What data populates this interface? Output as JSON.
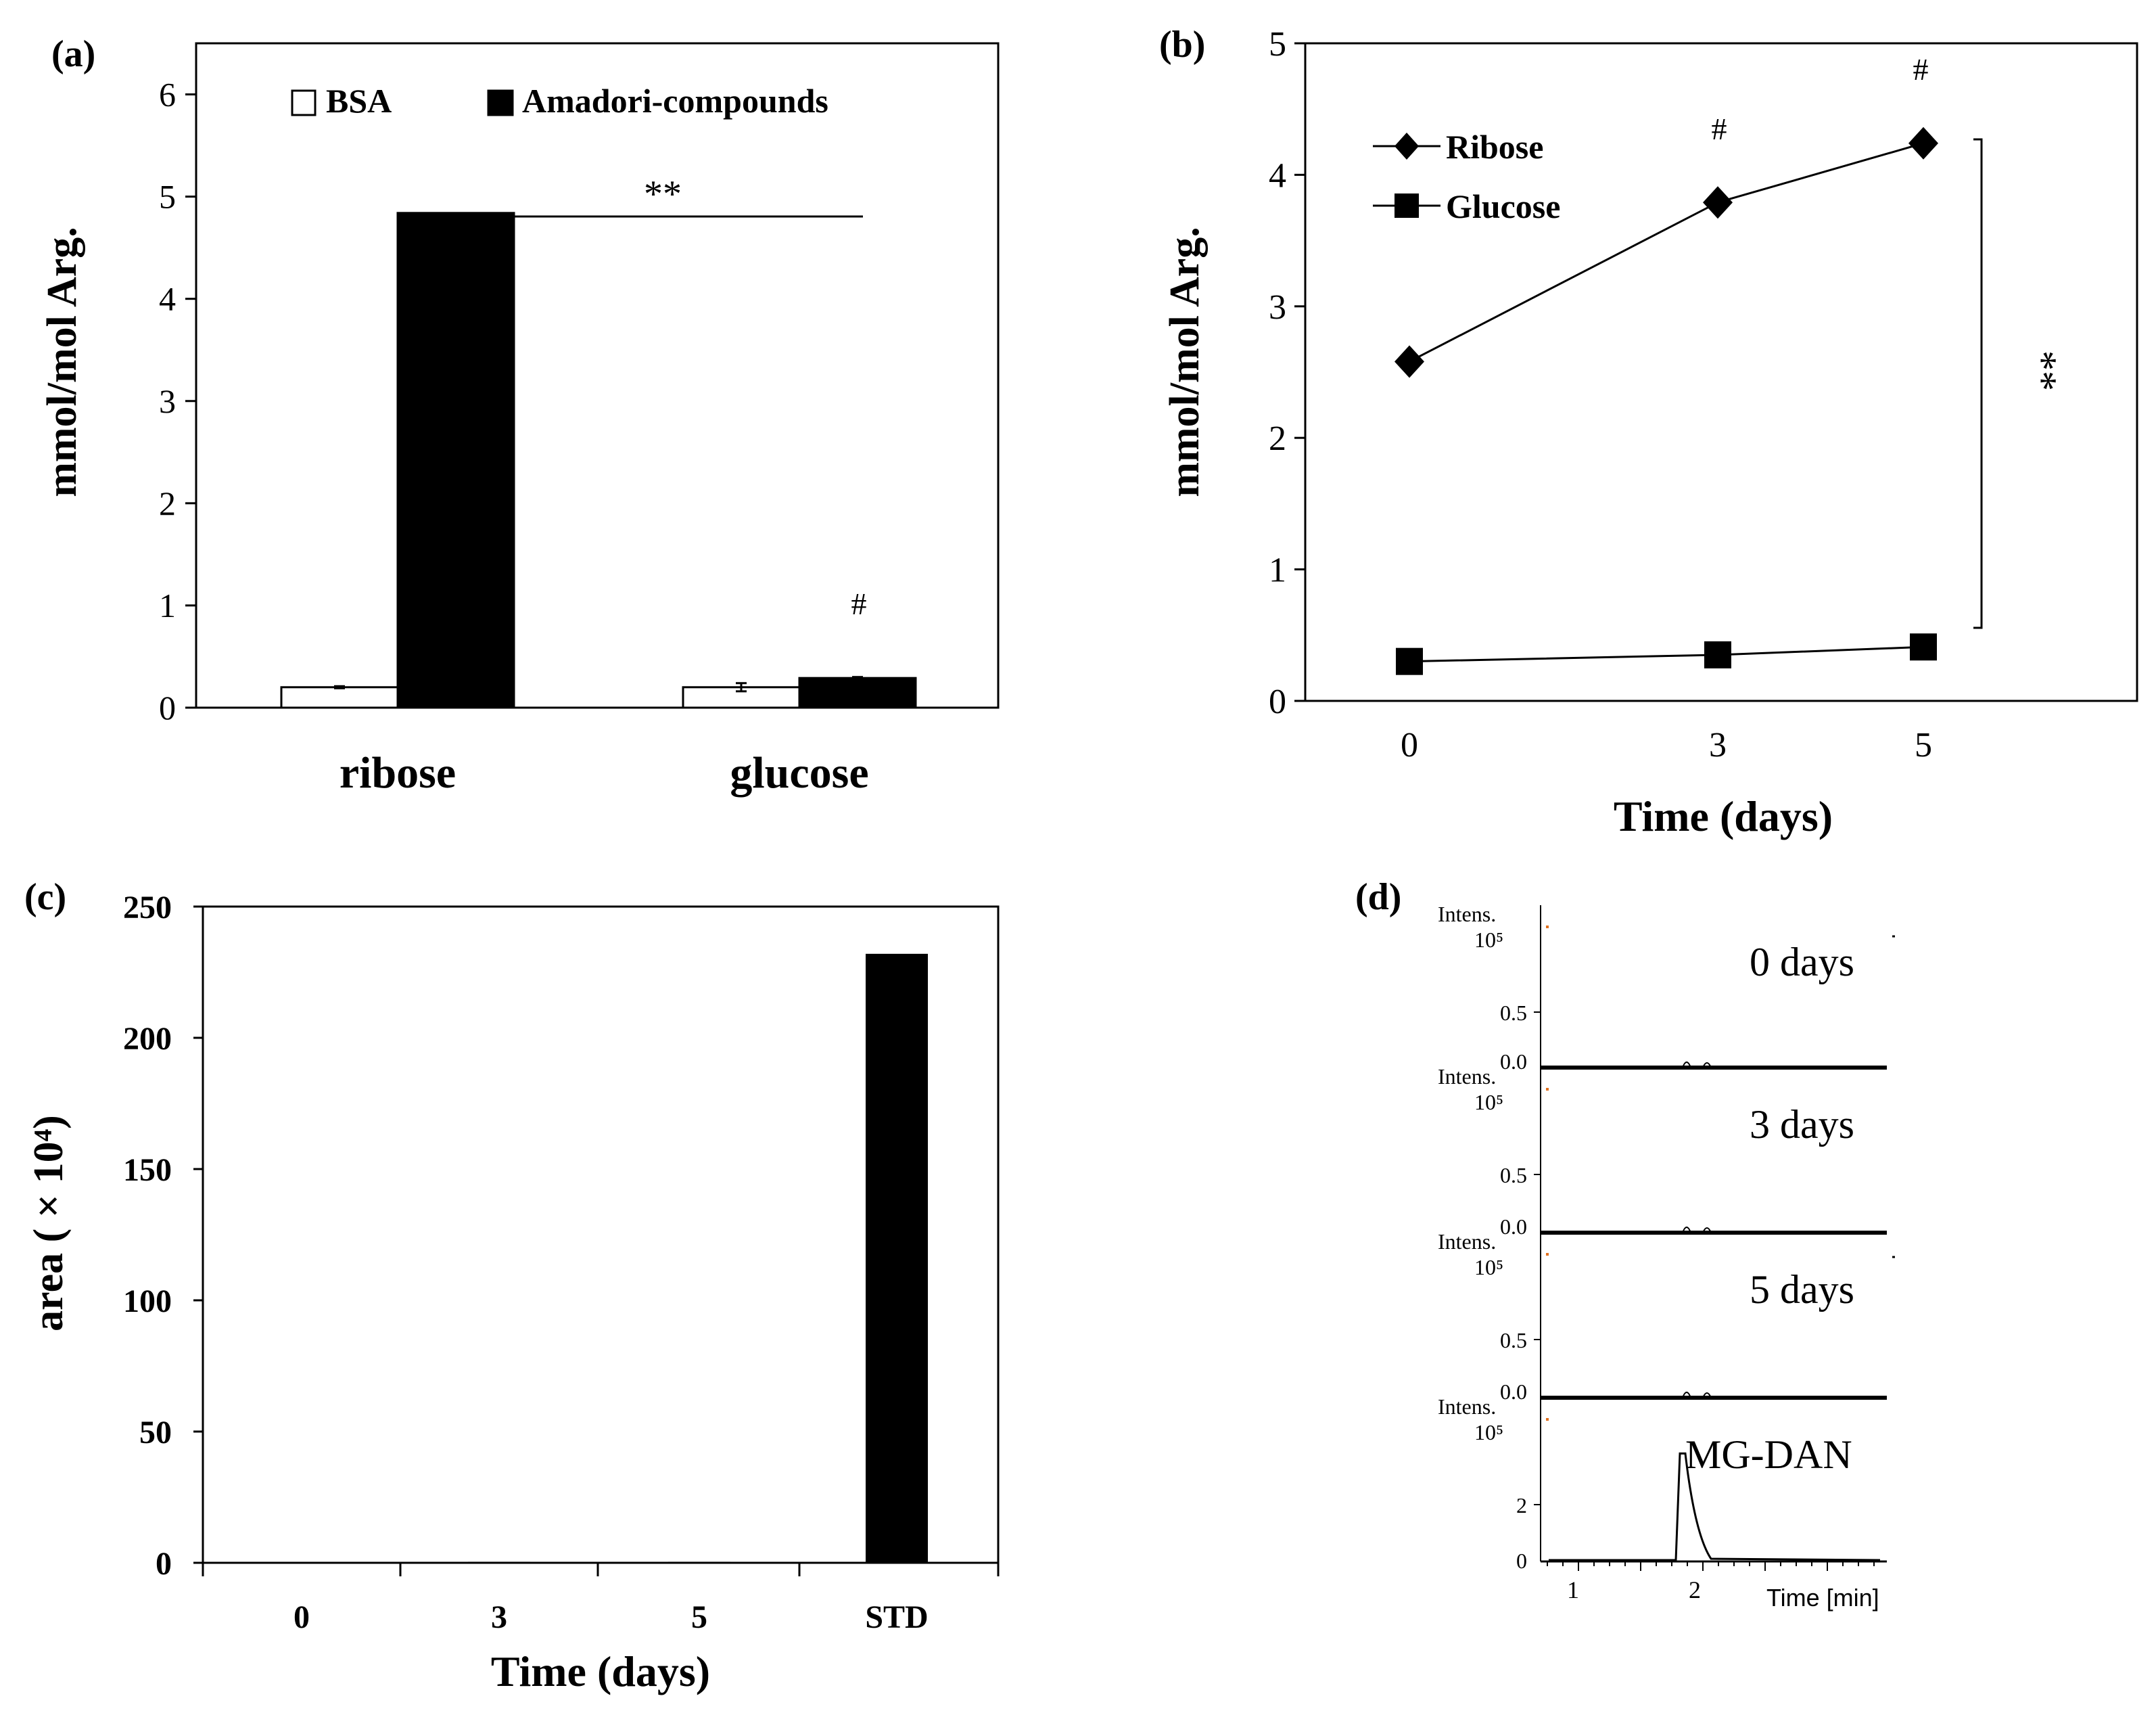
{
  "colors": {
    "black": "#000000",
    "white": "#ffffff",
    "marker_orange": "#e0701e"
  },
  "chart_data": [
    {
      "panel_label": "(a)",
      "type": "bar",
      "title": "",
      "xlabel": "",
      "ylabel": "mmol/mol Arg.",
      "ylim": [
        0,
        6.5
      ],
      "yticks": [
        "0",
        "1",
        "2",
        "3",
        "4",
        "5",
        "6"
      ],
      "categories": [
        "ribose",
        "glucose"
      ],
      "series": [
        {
          "name": "BSA",
          "values": [
            0.2,
            0.2
          ],
          "errors": [
            0.01,
            0.04
          ],
          "color": "#ffffff"
        },
        {
          "name": "Amadori-compounds",
          "values": [
            4.84,
            0.29
          ],
          "errors": [
            0.0,
            0.01
          ],
          "color": "#000000"
        }
      ],
      "legend": [
        "BSA",
        "Amadori-compounds"
      ],
      "annotations": {
        "hash": "#",
        "significance": "**"
      }
    },
    {
      "panel_label": "(b)",
      "type": "line",
      "xlabel": "Time (days)",
      "ylabel": "mmol/mol Arg.",
      "ylim": [
        0,
        5
      ],
      "yticks": [
        "0",
        "1",
        "2",
        "3",
        "4",
        "5"
      ],
      "xticks": [
        "0",
        "3",
        "5"
      ],
      "x": [
        0,
        3,
        5
      ],
      "series": [
        {
          "name": "Ribose",
          "marker": "diamond",
          "values": [
            2.58,
            3.79,
            4.24
          ]
        },
        {
          "name": "Glucose",
          "marker": "square",
          "values": [
            0.3,
            0.35,
            0.41
          ]
        }
      ],
      "annotations": {
        "hash": "#",
        "significance": "**"
      }
    },
    {
      "panel_label": "(c)",
      "type": "bar",
      "xlabel": "Time (days)",
      "ylabel": "area ( × 10⁴)",
      "ylim": [
        0,
        250
      ],
      "yticks": [
        "0",
        "50",
        "100",
        "150",
        "200",
        "250"
      ],
      "categories": [
        "0",
        "3",
        "5",
        "STD"
      ],
      "values": [
        0,
        0.4,
        0.4,
        232
      ]
    },
    {
      "panel_label": "(d)",
      "type": "line",
      "xlabel": "Time [min]",
      "intens_label": "Intens.",
      "xticks": [
        "1",
        "2"
      ],
      "exponent": "10⁵",
      "traces": [
        {
          "name": "0 days",
          "yticks": [
            "0.0",
            "0.5"
          ]
        },
        {
          "name": "3 days",
          "yticks": [
            "0.0",
            "0.5"
          ]
        },
        {
          "name": "5 days",
          "yticks": [
            "0.0",
            "0.5"
          ]
        },
        {
          "name": "MG-DAN",
          "yticks": [
            "0",
            "2"
          ],
          "peak_time_min": 1.9,
          "peak_height": 3.8
        }
      ]
    }
  ]
}
